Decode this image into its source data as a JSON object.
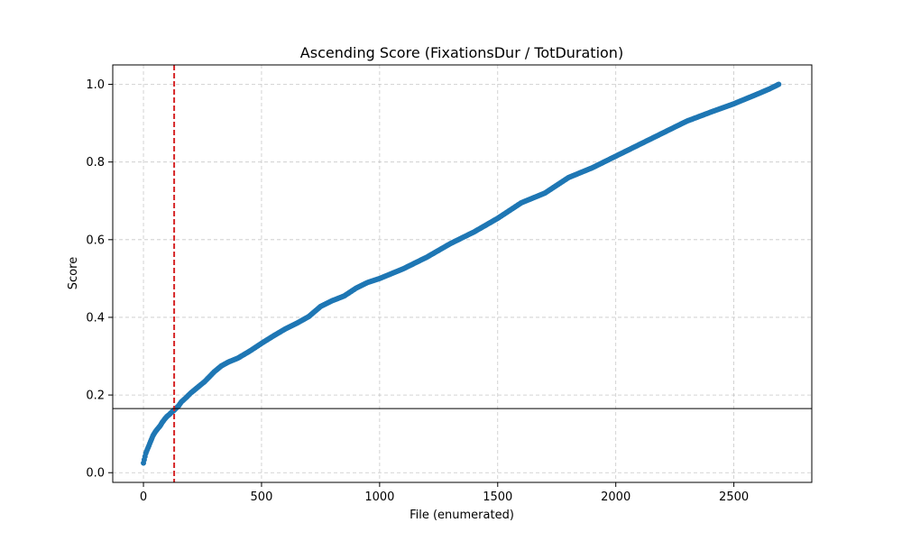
{
  "chart_data": {
    "type": "scatter",
    "title": "Ascending Score (FixationsDur / TotDuration)",
    "xlabel": "File (enumerated)",
    "ylabel": "Score",
    "xlim": [
      -130,
      2830
    ],
    "ylim": [
      -0.025,
      1.05
    ],
    "xticks": [
      0,
      500,
      1000,
      1500,
      2000,
      2500
    ],
    "yticks": [
      0.0,
      0.2,
      0.4,
      0.6,
      0.8,
      1.0
    ],
    "xtick_labels": [
      "0",
      "500",
      "1000",
      "1500",
      "2000",
      "2500"
    ],
    "ytick_labels": [
      "0.0",
      "0.2",
      "0.4",
      "0.6",
      "0.8",
      "1.0"
    ],
    "grid": true,
    "series": [
      {
        "color": "#1f77b4",
        "x": [
          0,
          10,
          20,
          30,
          40,
          50,
          60,
          70,
          80,
          90,
          100,
          110,
          120,
          130,
          140,
          150,
          160,
          180,
          200,
          230,
          260,
          300,
          330,
          360,
          400,
          450,
          500,
          550,
          600,
          650,
          700,
          750,
          800,
          850,
          900,
          950,
          1000,
          1100,
          1200,
          1300,
          1400,
          1500,
          1550,
          1600,
          1700,
          1800,
          1900,
          2000,
          2100,
          2200,
          2300,
          2400,
          2500,
          2600,
          2650,
          2690
        ],
        "y": [
          0.025,
          0.05,
          0.065,
          0.08,
          0.095,
          0.105,
          0.113,
          0.12,
          0.13,
          0.138,
          0.145,
          0.15,
          0.156,
          0.161,
          0.167,
          0.173,
          0.182,
          0.193,
          0.205,
          0.22,
          0.235,
          0.26,
          0.275,
          0.285,
          0.295,
          0.313,
          0.333,
          0.352,
          0.37,
          0.385,
          0.402,
          0.428,
          0.443,
          0.455,
          0.475,
          0.49,
          0.5,
          0.525,
          0.555,
          0.59,
          0.62,
          0.655,
          0.675,
          0.695,
          0.72,
          0.76,
          0.785,
          0.815,
          0.845,
          0.875,
          0.905,
          0.928,
          0.95,
          0.975,
          0.988,
          1.0
        ]
      }
    ],
    "vline": {
      "x": 130,
      "color": "#d62728",
      "style": "dashed"
    },
    "hline": {
      "y": 0.165,
      "color": "#000000"
    }
  }
}
